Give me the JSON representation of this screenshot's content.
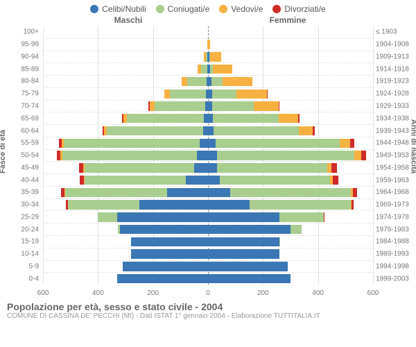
{
  "type": "population-pyramid",
  "colors": {
    "single": "#3b77b5",
    "married": "#a9ce8f",
    "widowed": "#f7b141",
    "divorced": "#cf2b2a",
    "grid": "#e0e0e0",
    "centerline": "#888888",
    "background": "#ffffff",
    "text": "#666666"
  },
  "legend": [
    {
      "key": "single",
      "label": "Celibi/Nubili"
    },
    {
      "key": "married",
      "label": "Coniugati/e"
    },
    {
      "key": "widowed",
      "label": "Vedovi/e"
    },
    {
      "key": "divorced",
      "label": "Divorziati/e"
    }
  ],
  "gender": {
    "male": "Maschi",
    "female": "Femmine"
  },
  "ylabel_left": "Fasce di età",
  "ylabel_right": "Anni di nascita",
  "x_max": 600,
  "x_ticks": [
    600,
    400,
    200,
    0,
    200,
    400,
    600
  ],
  "title": "Popolazione per età, sesso e stato civile - 2004",
  "subtitle": "COMUNE DI CASSINA DE' PECCHI (MI) - Dati ISTAT 1° gennaio 2004 - Elaborazione TUTTITALIA.IT",
  "rows": [
    {
      "age": "100+",
      "birth": "≤ 1903",
      "m": {
        "single": 0,
        "married": 0,
        "widowed": 0,
        "divorced": 0
      },
      "f": {
        "single": 0,
        "married": 0,
        "widowed": 0,
        "divorced": 0
      }
    },
    {
      "age": "95-99",
      "birth": "1904-1908",
      "m": {
        "single": 0,
        "married": 0,
        "widowed": 3,
        "divorced": 0
      },
      "f": {
        "single": 0,
        "married": 0,
        "widowed": 8,
        "divorced": 0
      }
    },
    {
      "age": "90-94",
      "birth": "1909-1913",
      "m": {
        "single": 2,
        "married": 6,
        "widowed": 6,
        "divorced": 0
      },
      "f": {
        "single": 4,
        "married": 4,
        "widowed": 40,
        "divorced": 0
      }
    },
    {
      "age": "85-89",
      "birth": "1914-1918",
      "m": {
        "single": 3,
        "married": 22,
        "widowed": 12,
        "divorced": 0
      },
      "f": {
        "single": 8,
        "married": 10,
        "widowed": 70,
        "divorced": 0
      }
    },
    {
      "age": "80-84",
      "birth": "1919-1923",
      "m": {
        "single": 5,
        "married": 70,
        "widowed": 20,
        "divorced": 0
      },
      "f": {
        "single": 12,
        "married": 40,
        "widowed": 110,
        "divorced": 0
      }
    },
    {
      "age": "75-79",
      "birth": "1924-1928",
      "m": {
        "single": 8,
        "married": 130,
        "widowed": 22,
        "divorced": 0
      },
      "f": {
        "single": 14,
        "married": 90,
        "widowed": 110,
        "divorced": 2
      }
    },
    {
      "age": "70-74",
      "birth": "1929-1933",
      "m": {
        "single": 10,
        "married": 185,
        "widowed": 18,
        "divorced": 3
      },
      "f": {
        "single": 16,
        "married": 150,
        "widowed": 90,
        "divorced": 4
      }
    },
    {
      "age": "65-69",
      "birth": "1934-1938",
      "m": {
        "single": 14,
        "married": 280,
        "widowed": 14,
        "divorced": 4
      },
      "f": {
        "single": 18,
        "married": 240,
        "widowed": 70,
        "divorced": 6
      }
    },
    {
      "age": "60-64",
      "birth": "1939-1943",
      "m": {
        "single": 18,
        "married": 350,
        "widowed": 10,
        "divorced": 6
      },
      "f": {
        "single": 20,
        "married": 310,
        "widowed": 50,
        "divorced": 8
      }
    },
    {
      "age": "55-59",
      "birth": "1944-1948",
      "m": {
        "single": 30,
        "married": 495,
        "widowed": 8,
        "divorced": 10
      },
      "f": {
        "single": 28,
        "married": 450,
        "widowed": 40,
        "divorced": 14
      }
    },
    {
      "age": "50-54",
      "birth": "1949-1953",
      "m": {
        "single": 40,
        "married": 490,
        "widowed": 6,
        "divorced": 14
      },
      "f": {
        "single": 32,
        "married": 500,
        "widowed": 26,
        "divorced": 18
      }
    },
    {
      "age": "45-49",
      "birth": "1954-1958",
      "m": {
        "single": 50,
        "married": 400,
        "widowed": 4,
        "divorced": 14
      },
      "f": {
        "single": 34,
        "married": 400,
        "widowed": 16,
        "divorced": 18
      }
    },
    {
      "age": "40-44",
      "birth": "1959-1963",
      "m": {
        "single": 80,
        "married": 370,
        "widowed": 2,
        "divorced": 14
      },
      "f": {
        "single": 44,
        "married": 400,
        "widowed": 10,
        "divorced": 20
      }
    },
    {
      "age": "35-39",
      "birth": "1964-1968",
      "m": {
        "single": 150,
        "married": 370,
        "widowed": 2,
        "divorced": 12
      },
      "f": {
        "single": 80,
        "married": 440,
        "widowed": 6,
        "divorced": 16
      }
    },
    {
      "age": "30-34",
      "birth": "1969-1973",
      "m": {
        "single": 250,
        "married": 260,
        "widowed": 0,
        "divorced": 6
      },
      "f": {
        "single": 150,
        "married": 370,
        "widowed": 2,
        "divorced": 8
      }
    },
    {
      "age": "25-29",
      "birth": "1974-1978",
      "m": {
        "single": 330,
        "married": 70,
        "widowed": 0,
        "divorced": 2
      },
      "f": {
        "single": 260,
        "married": 160,
        "widowed": 0,
        "divorced": 4
      }
    },
    {
      "age": "20-24",
      "birth": "1979-1983",
      "m": {
        "single": 320,
        "married": 8,
        "widowed": 0,
        "divorced": 0
      },
      "f": {
        "single": 300,
        "married": 40,
        "widowed": 0,
        "divorced": 0
      }
    },
    {
      "age": "15-19",
      "birth": "1984-1988",
      "m": {
        "single": 280,
        "married": 0,
        "widowed": 0,
        "divorced": 0
      },
      "f": {
        "single": 260,
        "married": 2,
        "widowed": 0,
        "divorced": 0
      }
    },
    {
      "age": "10-14",
      "birth": "1989-1993",
      "m": {
        "single": 280,
        "married": 0,
        "widowed": 0,
        "divorced": 0
      },
      "f": {
        "single": 260,
        "married": 0,
        "widowed": 0,
        "divorced": 0
      }
    },
    {
      "age": "5-9",
      "birth": "1994-1998",
      "m": {
        "single": 310,
        "married": 0,
        "widowed": 0,
        "divorced": 0
      },
      "f": {
        "single": 290,
        "married": 0,
        "widowed": 0,
        "divorced": 0
      }
    },
    {
      "age": "0-4",
      "birth": "1999-2003",
      "m": {
        "single": 330,
        "married": 0,
        "widowed": 0,
        "divorced": 0
      },
      "f": {
        "single": 300,
        "married": 0,
        "widowed": 0,
        "divorced": 0
      }
    }
  ]
}
